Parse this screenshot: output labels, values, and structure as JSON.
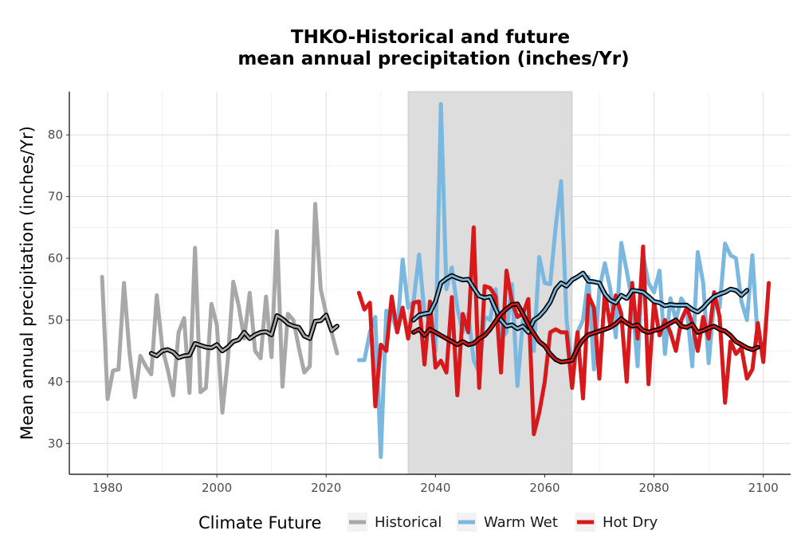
{
  "chart_data": {
    "type": "line",
    "title_lines": [
      "THKO-Historical and future",
      "mean annual precipitation (inches/Yr)"
    ],
    "xlabel": "",
    "ylabel": "Mean annual precipitation (inches/Yr)",
    "xlim": [
      1973,
      2105
    ],
    "ylim": [
      25,
      87
    ],
    "x_ticks": [
      1980,
      2000,
      2020,
      2040,
      2060,
      2080,
      2100
    ],
    "y_ticks": [
      30,
      40,
      50,
      60,
      70,
      80
    ],
    "grid": true,
    "shaded_period": [
      2035,
      2065
    ],
    "legend": {
      "title": "Climate Future",
      "placement": "bottom",
      "entries": [
        "Historical",
        "Warm Wet",
        "Hot Dry"
      ]
    },
    "colors": {
      "Historical": "#a8a8a8",
      "Warm Wet": "#7ab8e0",
      "Hot Dry": "#d7191c",
      "smooth": "#000000",
      "shade": "#dddddd"
    },
    "series": [
      {
        "name": "Historical",
        "x_start": 1979,
        "values": [
          57.0,
          37.2,
          41.8,
          42.0,
          56.0,
          44.8,
          37.5,
          44.2,
          42.5,
          41.2,
          54.0,
          45.5,
          42.0,
          37.8,
          48.0,
          50.3,
          38.2,
          61.7,
          38.3,
          39.0,
          52.6,
          49.2,
          35.0,
          43.5,
          56.2,
          52.3,
          47.0,
          54.4,
          45.0,
          43.8,
          53.8,
          44.0,
          64.4,
          39.2,
          51.0,
          50.0,
          45.5,
          41.5,
          42.5,
          68.8,
          55.0,
          51.0,
          48.0,
          44.6
        ],
        "smooth_x_start": 1988,
        "smooth": [
          44.6,
          44.2,
          45.0,
          45.2,
          44.8,
          43.9,
          44.2,
          44.3,
          46.2,
          45.9,
          45.6,
          45.5,
          46.0,
          45.0,
          45.6,
          46.5,
          46.8,
          48.0,
          47.0,
          47.6,
          48.0,
          48.1,
          47.6,
          50.7,
          50.2,
          49.4,
          49.0,
          48.8,
          47.4,
          47.0,
          49.8,
          49.9,
          50.8,
          48.3,
          49.0
        ]
      },
      {
        "name": "Warm Wet",
        "x_start": 2026,
        "values": [
          43.5,
          43.5,
          48.0,
          50.5,
          27.8,
          51.5,
          51.0,
          48.0,
          59.8,
          52.0,
          53.0,
          60.6,
          51.0,
          50.0,
          45.0,
          85.0,
          55.0,
          58.5,
          52.0,
          48.0,
          51.0,
          43.5,
          41.5,
          50.5,
          50.0,
          55.0,
          47.0,
          48.0,
          55.8,
          39.3,
          50.0,
          49.0,
          45.0,
          60.2,
          56.0,
          55.8,
          65.0,
          72.5,
          50.0,
          42.0,
          48.0,
          50.0,
          57.0,
          42.0,
          55.0,
          59.2,
          55.0,
          47.2,
          62.5,
          58.0,
          53.0,
          42.5,
          60.5,
          56.0,
          54.5,
          58.0,
          44.5,
          53.5,
          50.0,
          53.5,
          52.0,
          42.5,
          61.0,
          56.0,
          43.0,
          53.0,
          52.0,
          62.4,
          60.5,
          60.0,
          53.0,
          50.0,
          60.5,
          46.5
        ],
        "smooth_x_start": 2036,
        "smooth": [
          50.0,
          50.8,
          51.0,
          51.2,
          53.0,
          56.0,
          56.7,
          57.2,
          56.8,
          56.5,
          56.6,
          55.2,
          53.9,
          53.6,
          53.8,
          51.8,
          50.0,
          49.0,
          49.2,
          48.6,
          49.0,
          48.0,
          50.0,
          50.6,
          51.6,
          52.9,
          55.0,
          56.0,
          55.5,
          56.5,
          57.0,
          57.6,
          56.3,
          56.2,
          56.0,
          54.2,
          53.2,
          52.8,
          54.0,
          53.5,
          54.8,
          54.7,
          54.5,
          53.8,
          53.0,
          52.8,
          52.3,
          52.5,
          52.4,
          52.4,
          52.4,
          51.7,
          51.3,
          52.0,
          53.0,
          53.8,
          54.2,
          54.5,
          55.0,
          54.8,
          54.0,
          54.8
        ]
      },
      {
        "name": "Hot Dry",
        "x_start": 2026,
        "values": [
          54.4,
          51.7,
          52.8,
          36.0,
          46.0,
          45.0,
          53.8,
          48.0,
          52.0,
          47.0,
          52.8,
          53.0,
          42.8,
          53.0,
          42.3,
          43.4,
          41.5,
          53.7,
          37.8,
          51.0,
          48.0,
          65.0,
          39.0,
          55.5,
          55.2,
          53.8,
          41.5,
          58.0,
          53.0,
          50.5,
          51.0,
          53.4,
          31.5,
          35.0,
          40.0,
          48.0,
          48.5,
          48.0,
          48.0,
          39.0,
          48.0,
          37.3,
          54.0,
          52.0,
          40.5,
          54.5,
          49.0,
          54.0,
          51.0,
          40.0,
          56.0,
          47.0,
          61.9,
          39.6,
          53.0,
          47.5,
          50.0,
          48.0,
          45.0,
          50.0,
          52.0,
          49.5,
          45.0,
          50.5,
          47.0,
          54.5,
          50.5,
          36.6,
          46.5,
          44.5,
          45.5,
          40.5,
          42.0,
          49.5,
          43.2,
          56.0
        ],
        "smooth_x_start": 2036,
        "smooth": [
          48.0,
          48.5,
          47.5,
          48.5,
          48.0,
          47.5,
          47.0,
          46.5,
          46.0,
          46.5,
          46.0,
          46.2,
          47.0,
          47.5,
          48.5,
          49.8,
          51.0,
          51.8,
          52.5,
          52.6,
          51.0,
          49.2,
          47.8,
          46.5,
          45.8,
          44.5,
          43.6,
          43.2,
          43.3,
          43.5,
          45.4,
          46.8,
          47.6,
          47.9,
          48.2,
          48.5,
          48.8,
          49.4,
          50.2,
          49.5,
          49.0,
          49.2,
          48.3,
          48.0,
          48.3,
          48.5,
          49.0,
          49.5,
          50.0,
          49.0,
          48.8,
          49.3,
          48.0,
          48.3,
          48.7,
          49.0,
          48.5,
          48.2,
          47.5,
          46.5,
          46.0,
          45.5,
          45.2,
          45.6
        ]
      }
    ]
  }
}
